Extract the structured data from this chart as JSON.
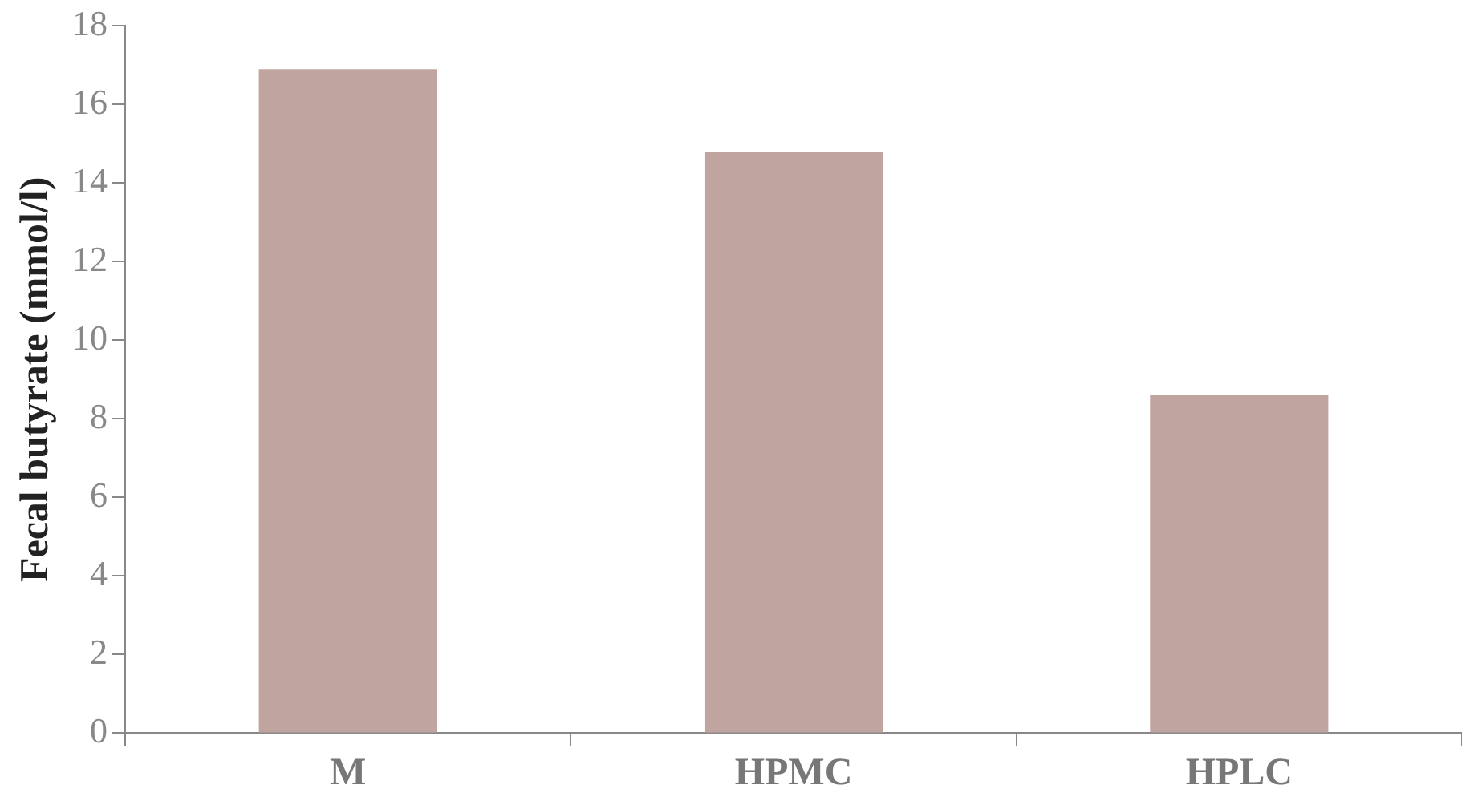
{
  "chart_data": {
    "type": "bar",
    "ylabel": "Fecal butyrate (mmol/l)",
    "categories": [
      "M",
      "HPMC",
      "HPLC"
    ],
    "values": [
      16.9,
      14.8,
      8.6
    ],
    "color": "#c0a4a0",
    "ylim": [
      0,
      18
    ],
    "yticks": [
      0,
      2,
      4,
      6,
      8,
      10,
      12,
      14,
      16,
      18
    ],
    "grid": false,
    "legend": false
  }
}
